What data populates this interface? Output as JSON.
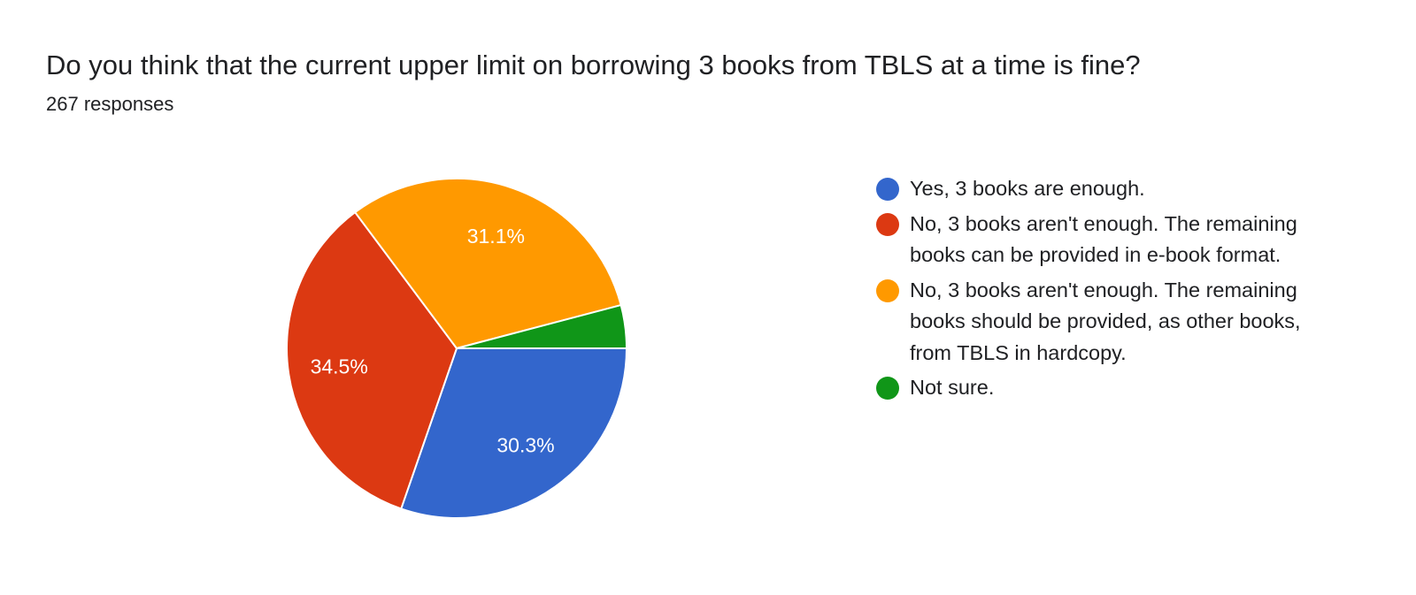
{
  "header": {
    "title": "Do you think that the current upper limit on borrowing 3 books from TBLS at a time is fine?",
    "responses": "267 responses"
  },
  "chart_data": {
    "type": "pie",
    "title": "Do you think that the current upper limit on borrowing 3 books from TBLS at a time is fine?",
    "legend_position": "right",
    "slices": [
      {
        "label": "Yes, 3 books are enough.",
        "value": 30.3,
        "display": "30.3%",
        "color": "#3366cc"
      },
      {
        "label": "No, 3 books aren't enough. The remaining books can be provided in e-book format.",
        "value": 34.5,
        "display": "34.5%",
        "color": "#dc3912"
      },
      {
        "label": "No, 3 books aren't enough. The remaining books should be provided, as other books, from TBLS in hardcopy.",
        "value": 31.1,
        "display": "31.1%",
        "color": "#ff9900"
      },
      {
        "label": "Not sure.",
        "value": 4.1,
        "display": "",
        "color": "#109618"
      }
    ]
  }
}
